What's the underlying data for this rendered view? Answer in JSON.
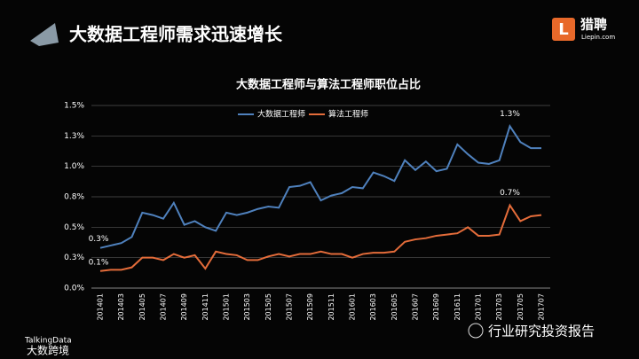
{
  "header": {
    "title": "大数据工程师需求迅速增长",
    "logo": "猎聘",
    "logo_sub": "Liepin.com"
  },
  "footer": {
    "source": "TalkingData",
    "watermark": "大数跨境",
    "channel": "行业研究投资报告"
  },
  "chart_data": {
    "type": "line",
    "title": "大数据工程师与算法工程师职位占比",
    "categories": [
      "201401",
      null,
      "201403",
      null,
      "201405",
      null,
      "201407",
      null,
      "201409",
      null,
      "201411",
      null,
      "201501",
      null,
      "201503",
      null,
      "201505",
      null,
      "201507",
      null,
      "201509",
      null,
      "201511",
      null,
      "201601",
      null,
      "201603",
      null,
      "201605",
      null,
      "201607",
      null,
      "201609",
      null,
      "201611",
      null,
      "201701",
      null,
      "201703",
      null,
      "201705",
      null,
      "201707"
    ],
    "series": [
      {
        "name": "大数据工程师",
        "color": "#4f81bd",
        "values": [
          0.33,
          0.35,
          0.37,
          0.42,
          0.62,
          0.6,
          0.57,
          0.7,
          0.52,
          0.55,
          0.5,
          0.47,
          0.62,
          0.6,
          0.62,
          0.65,
          0.67,
          0.66,
          0.83,
          0.84,
          0.87,
          0.72,
          0.76,
          0.78,
          0.83,
          0.82,
          0.95,
          0.92,
          0.88,
          1.05,
          0.97,
          1.04,
          0.96,
          0.98,
          1.18,
          1.1,
          1.03,
          1.02,
          1.05,
          1.33,
          1.2,
          1.15,
          1.15
        ],
        "value_labels": [
          "0.3%",
          null,
          null,
          null,
          null,
          null,
          null,
          null,
          null,
          null,
          null,
          null,
          null,
          null,
          null,
          null,
          null,
          null,
          null,
          null,
          null,
          null,
          null,
          null,
          null,
          null,
          null,
          null,
          null,
          null,
          null,
          null,
          null,
          null,
          null,
          null,
          null,
          null,
          null,
          "1.3%",
          null,
          null,
          null
        ]
      },
      {
        "name": "算法工程师",
        "color": "#e46c3a",
        "values": [
          0.14,
          0.15,
          0.15,
          0.17,
          0.25,
          0.25,
          0.23,
          0.28,
          0.25,
          0.27,
          0.16,
          0.3,
          0.28,
          0.27,
          0.23,
          0.23,
          0.26,
          0.28,
          0.26,
          0.28,
          0.28,
          0.3,
          0.28,
          0.28,
          0.25,
          0.28,
          0.29,
          0.29,
          0.3,
          0.38,
          0.4,
          0.41,
          0.43,
          0.44,
          0.45,
          0.5,
          0.43,
          0.43,
          0.44,
          0.68,
          0.55,
          0.59,
          0.6
        ],
        "value_labels": [
          "0.1%",
          null,
          null,
          null,
          null,
          null,
          null,
          null,
          null,
          null,
          null,
          null,
          null,
          null,
          null,
          null,
          null,
          null,
          null,
          null,
          null,
          null,
          null,
          null,
          null,
          null,
          null,
          null,
          null,
          null,
          null,
          null,
          null,
          null,
          null,
          null,
          null,
          null,
          null,
          "0.7%",
          null,
          null,
          null
        ]
      }
    ],
    "ylim": [
      0,
      1.5
    ],
    "yticks": [
      {
        "value": 0,
        "label": "0.0%"
      },
      {
        "value": 0.25,
        "label": "0.3%"
      },
      {
        "value": 0.5,
        "label": "0.5%"
      },
      {
        "value": 0.75,
        "label": "0.8%"
      },
      {
        "value": 1,
        "label": "1.0%"
      },
      {
        "value": 1.25,
        "label": "1.3%"
      },
      {
        "value": 1.5,
        "label": "1.5%"
      }
    ],
    "grid": true,
    "legend": "top-left"
  }
}
